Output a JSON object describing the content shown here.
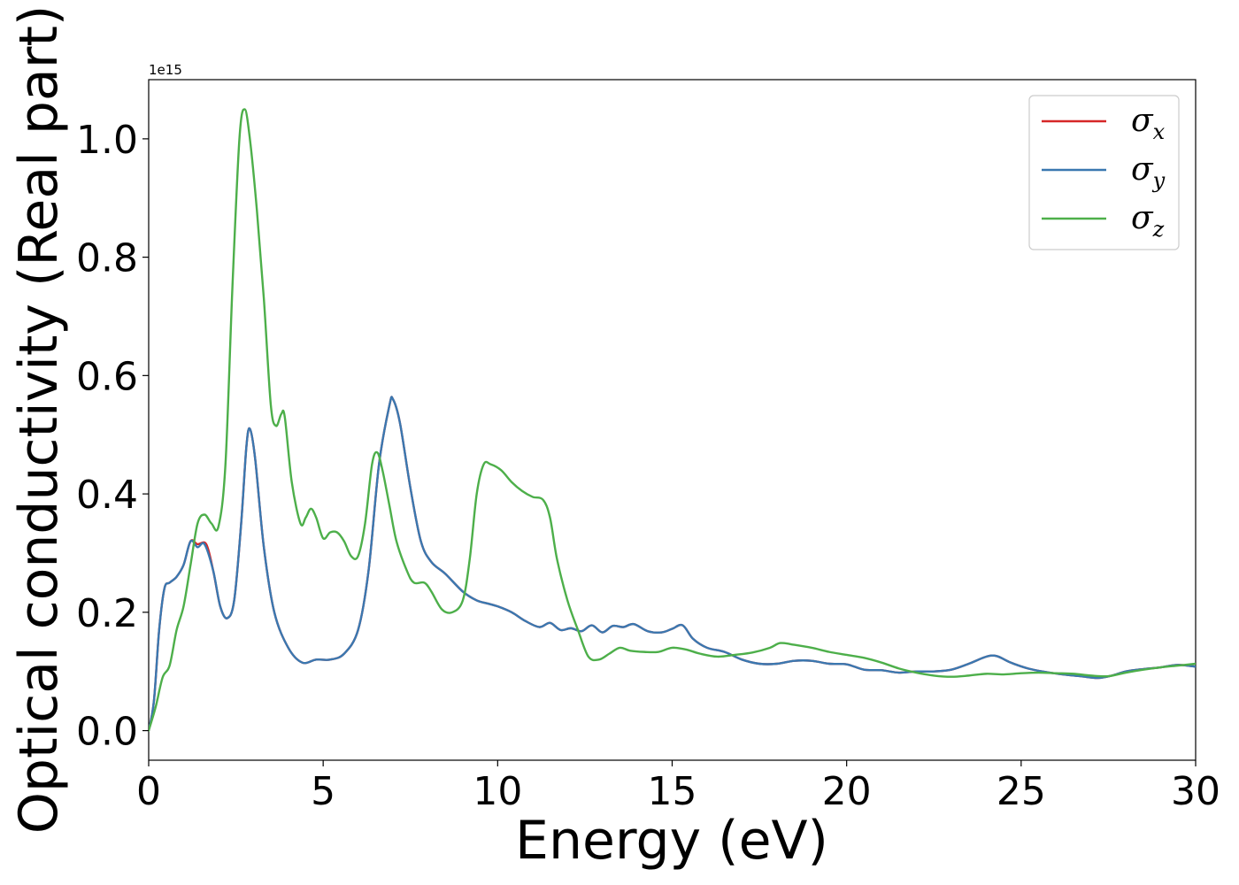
{
  "chart_data": {
    "type": "line",
    "xlabel": "Energy (eV)",
    "ylabel": "Optical conductivity (Real part)",
    "y_offset_label": "1e15",
    "xlim": [
      0,
      30
    ],
    "ylim": [
      -0.05,
      1.1
    ],
    "x_ticks": [
      0,
      5,
      10,
      15,
      20,
      25,
      30
    ],
    "x_tick_labels": [
      "0",
      "5",
      "10",
      "15",
      "20",
      "25",
      "30"
    ],
    "y_ticks": [
      0.0,
      0.2,
      0.4,
      0.6,
      0.8,
      1.0
    ],
    "y_tick_labels": [
      "0.0",
      "0.2",
      "0.4",
      "0.6",
      "0.8",
      "1.0"
    ],
    "grid": false,
    "legend_position": "top-right",
    "series": [
      {
        "name": "σx",
        "legend_base": "σ",
        "legend_sub": "x",
        "color": "#d62728",
        "points": [
          [
            0,
            0
          ],
          [
            0.15,
            0.05
          ],
          [
            0.3,
            0.17
          ],
          [
            0.45,
            0.24
          ],
          [
            0.6,
            0.25
          ],
          [
            0.8,
            0.26
          ],
          [
            1.0,
            0.28
          ],
          [
            1.2,
            0.32
          ],
          [
            1.4,
            0.315
          ],
          [
            1.65,
            0.315
          ],
          [
            1.85,
            0.27
          ],
          [
            2.05,
            0.21
          ],
          [
            2.25,
            0.19
          ],
          [
            2.45,
            0.22
          ],
          [
            2.65,
            0.35
          ],
          [
            2.8,
            0.48
          ],
          [
            2.9,
            0.51
          ],
          [
            3.05,
            0.46
          ],
          [
            3.3,
            0.31
          ],
          [
            3.6,
            0.2
          ],
          [
            4.0,
            0.14
          ],
          [
            4.4,
            0.115
          ],
          [
            4.8,
            0.12
          ],
          [
            5.2,
            0.12
          ],
          [
            5.6,
            0.13
          ],
          [
            6.0,
            0.17
          ],
          [
            6.3,
            0.27
          ],
          [
            6.6,
            0.45
          ],
          [
            6.9,
            0.55
          ],
          [
            7.0,
            0.56
          ],
          [
            7.2,
            0.52
          ],
          [
            7.5,
            0.41
          ],
          [
            7.8,
            0.32
          ],
          [
            8.1,
            0.285
          ],
          [
            8.5,
            0.265
          ],
          [
            9.0,
            0.235
          ],
          [
            9.4,
            0.22
          ],
          [
            9.7,
            0.215
          ],
          [
            10.0,
            0.21
          ],
          [
            10.4,
            0.2
          ],
          [
            10.8,
            0.185
          ],
          [
            11.2,
            0.175
          ],
          [
            11.5,
            0.182
          ],
          [
            11.8,
            0.17
          ],
          [
            12.1,
            0.173
          ],
          [
            12.4,
            0.168
          ],
          [
            12.7,
            0.178
          ],
          [
            13.0,
            0.166
          ],
          [
            13.3,
            0.177
          ],
          [
            13.6,
            0.175
          ],
          [
            13.9,
            0.18
          ],
          [
            14.3,
            0.168
          ],
          [
            14.7,
            0.166
          ],
          [
            15.0,
            0.172
          ],
          [
            15.3,
            0.178
          ],
          [
            15.6,
            0.155
          ],
          [
            16.0,
            0.14
          ],
          [
            16.5,
            0.133
          ],
          [
            17.0,
            0.12
          ],
          [
            17.5,
            0.113
          ],
          [
            18.0,
            0.113
          ],
          [
            18.5,
            0.118
          ],
          [
            19.0,
            0.118
          ],
          [
            19.5,
            0.113
          ],
          [
            20.0,
            0.112
          ],
          [
            20.5,
            0.103
          ],
          [
            21.0,
            0.102
          ],
          [
            21.5,
            0.098
          ],
          [
            22.0,
            0.1
          ],
          [
            22.5,
            0.1
          ],
          [
            23.0,
            0.103
          ],
          [
            23.5,
            0.113
          ],
          [
            24.0,
            0.125
          ],
          [
            24.3,
            0.126
          ],
          [
            24.7,
            0.115
          ],
          [
            25.2,
            0.105
          ],
          [
            25.7,
            0.099
          ],
          [
            26.2,
            0.095
          ],
          [
            26.7,
            0.092
          ],
          [
            27.2,
            0.089
          ],
          [
            27.6,
            0.093
          ],
          [
            28.0,
            0.1
          ],
          [
            28.5,
            0.104
          ],
          [
            29.0,
            0.107
          ],
          [
            29.5,
            0.111
          ],
          [
            30.0,
            0.108
          ]
        ]
      },
      {
        "name": "σy",
        "legend_base": "σ",
        "legend_sub": "y",
        "color": "#3a78b0",
        "points": [
          [
            0,
            0
          ],
          [
            0.15,
            0.05
          ],
          [
            0.3,
            0.17
          ],
          [
            0.45,
            0.24
          ],
          [
            0.6,
            0.25
          ],
          [
            0.8,
            0.26
          ],
          [
            1.0,
            0.28
          ],
          [
            1.2,
            0.32
          ],
          [
            1.4,
            0.31
          ],
          [
            1.6,
            0.315
          ],
          [
            1.85,
            0.27
          ],
          [
            2.05,
            0.21
          ],
          [
            2.25,
            0.19
          ],
          [
            2.45,
            0.22
          ],
          [
            2.65,
            0.35
          ],
          [
            2.8,
            0.48
          ],
          [
            2.9,
            0.51
          ],
          [
            3.05,
            0.46
          ],
          [
            3.3,
            0.31
          ],
          [
            3.6,
            0.2
          ],
          [
            4.0,
            0.14
          ],
          [
            4.4,
            0.115
          ],
          [
            4.8,
            0.12
          ],
          [
            5.2,
            0.12
          ],
          [
            5.6,
            0.13
          ],
          [
            6.0,
            0.17
          ],
          [
            6.3,
            0.27
          ],
          [
            6.6,
            0.45
          ],
          [
            6.9,
            0.55
          ],
          [
            7.0,
            0.56
          ],
          [
            7.2,
            0.52
          ],
          [
            7.5,
            0.41
          ],
          [
            7.8,
            0.32
          ],
          [
            8.1,
            0.285
          ],
          [
            8.5,
            0.265
          ],
          [
            9.0,
            0.235
          ],
          [
            9.4,
            0.22
          ],
          [
            9.7,
            0.215
          ],
          [
            10.0,
            0.21
          ],
          [
            10.4,
            0.2
          ],
          [
            10.8,
            0.185
          ],
          [
            11.2,
            0.175
          ],
          [
            11.5,
            0.182
          ],
          [
            11.8,
            0.17
          ],
          [
            12.1,
            0.173
          ],
          [
            12.4,
            0.168
          ],
          [
            12.7,
            0.178
          ],
          [
            13.0,
            0.166
          ],
          [
            13.3,
            0.177
          ],
          [
            13.6,
            0.175
          ],
          [
            13.9,
            0.18
          ],
          [
            14.3,
            0.168
          ],
          [
            14.7,
            0.166
          ],
          [
            15.0,
            0.172
          ],
          [
            15.3,
            0.178
          ],
          [
            15.6,
            0.155
          ],
          [
            16.0,
            0.14
          ],
          [
            16.5,
            0.133
          ],
          [
            17.0,
            0.12
          ],
          [
            17.5,
            0.113
          ],
          [
            18.0,
            0.113
          ],
          [
            18.5,
            0.118
          ],
          [
            19.0,
            0.118
          ],
          [
            19.5,
            0.113
          ],
          [
            20.0,
            0.112
          ],
          [
            20.5,
            0.103
          ],
          [
            21.0,
            0.102
          ],
          [
            21.5,
            0.098
          ],
          [
            22.0,
            0.1
          ],
          [
            22.5,
            0.1
          ],
          [
            23.0,
            0.103
          ],
          [
            23.5,
            0.113
          ],
          [
            24.0,
            0.125
          ],
          [
            24.3,
            0.126
          ],
          [
            24.7,
            0.115
          ],
          [
            25.2,
            0.105
          ],
          [
            25.7,
            0.099
          ],
          [
            26.2,
            0.095
          ],
          [
            26.7,
            0.092
          ],
          [
            27.2,
            0.089
          ],
          [
            27.6,
            0.093
          ],
          [
            28.0,
            0.1
          ],
          [
            28.5,
            0.104
          ],
          [
            29.0,
            0.107
          ],
          [
            29.5,
            0.111
          ],
          [
            30.0,
            0.108
          ]
        ]
      },
      {
        "name": "σz",
        "legend_base": "σ",
        "legend_sub": "z",
        "color": "#4daf4a",
        "points": [
          [
            0,
            0
          ],
          [
            0.2,
            0.04
          ],
          [
            0.4,
            0.09
          ],
          [
            0.6,
            0.11
          ],
          [
            0.8,
            0.17
          ],
          [
            1.0,
            0.21
          ],
          [
            1.2,
            0.28
          ],
          [
            1.4,
            0.35
          ],
          [
            1.6,
            0.365
          ],
          [
            1.8,
            0.35
          ],
          [
            2.0,
            0.345
          ],
          [
            2.2,
            0.45
          ],
          [
            2.4,
            0.75
          ],
          [
            2.6,
            1.0
          ],
          [
            2.75,
            1.05
          ],
          [
            2.9,
            1.0
          ],
          [
            3.1,
            0.88
          ],
          [
            3.3,
            0.73
          ],
          [
            3.5,
            0.55
          ],
          [
            3.65,
            0.515
          ],
          [
            3.8,
            0.535
          ],
          [
            3.9,
            0.53
          ],
          [
            4.1,
            0.42
          ],
          [
            4.35,
            0.35
          ],
          [
            4.5,
            0.36
          ],
          [
            4.65,
            0.375
          ],
          [
            4.8,
            0.36
          ],
          [
            5.0,
            0.325
          ],
          [
            5.2,
            0.335
          ],
          [
            5.4,
            0.335
          ],
          [
            5.6,
            0.32
          ],
          [
            5.8,
            0.295
          ],
          [
            6.0,
            0.295
          ],
          [
            6.2,
            0.35
          ],
          [
            6.4,
            0.45
          ],
          [
            6.55,
            0.47
          ],
          [
            6.7,
            0.44
          ],
          [
            6.9,
            0.38
          ],
          [
            7.1,
            0.32
          ],
          [
            7.4,
            0.27
          ],
          [
            7.6,
            0.25
          ],
          [
            7.9,
            0.25
          ],
          [
            8.1,
            0.235
          ],
          [
            8.4,
            0.205
          ],
          [
            8.7,
            0.2
          ],
          [
            9.0,
            0.22
          ],
          [
            9.2,
            0.29
          ],
          [
            9.4,
            0.4
          ],
          [
            9.6,
            0.45
          ],
          [
            9.8,
            0.45
          ],
          [
            10.1,
            0.44
          ],
          [
            10.4,
            0.42
          ],
          [
            10.7,
            0.405
          ],
          [
            11.0,
            0.395
          ],
          [
            11.3,
            0.39
          ],
          [
            11.5,
            0.36
          ],
          [
            11.7,
            0.29
          ],
          [
            12.0,
            0.22
          ],
          [
            12.3,
            0.17
          ],
          [
            12.6,
            0.125
          ],
          [
            12.9,
            0.12
          ],
          [
            13.2,
            0.13
          ],
          [
            13.5,
            0.14
          ],
          [
            13.8,
            0.135
          ],
          [
            14.2,
            0.133
          ],
          [
            14.6,
            0.133
          ],
          [
            15.0,
            0.14
          ],
          [
            15.4,
            0.137
          ],
          [
            15.8,
            0.13
          ],
          [
            16.3,
            0.125
          ],
          [
            16.8,
            0.128
          ],
          [
            17.3,
            0.132
          ],
          [
            17.8,
            0.14
          ],
          [
            18.1,
            0.148
          ],
          [
            18.5,
            0.145
          ],
          [
            19.0,
            0.14
          ],
          [
            19.5,
            0.133
          ],
          [
            20.0,
            0.128
          ],
          [
            20.5,
            0.123
          ],
          [
            21.0,
            0.115
          ],
          [
            21.5,
            0.105
          ],
          [
            22.0,
            0.098
          ],
          [
            22.5,
            0.093
          ],
          [
            23.0,
            0.091
          ],
          [
            23.5,
            0.093
          ],
          [
            24.0,
            0.096
          ],
          [
            24.5,
            0.095
          ],
          [
            25.0,
            0.097
          ],
          [
            25.5,
            0.098
          ],
          [
            26.0,
            0.097
          ],
          [
            26.5,
            0.096
          ],
          [
            27.0,
            0.093
          ],
          [
            27.5,
            0.092
          ],
          [
            28.0,
            0.098
          ],
          [
            28.5,
            0.103
          ],
          [
            29.0,
            0.107
          ],
          [
            29.5,
            0.11
          ],
          [
            30.0,
            0.113
          ]
        ]
      }
    ]
  }
}
